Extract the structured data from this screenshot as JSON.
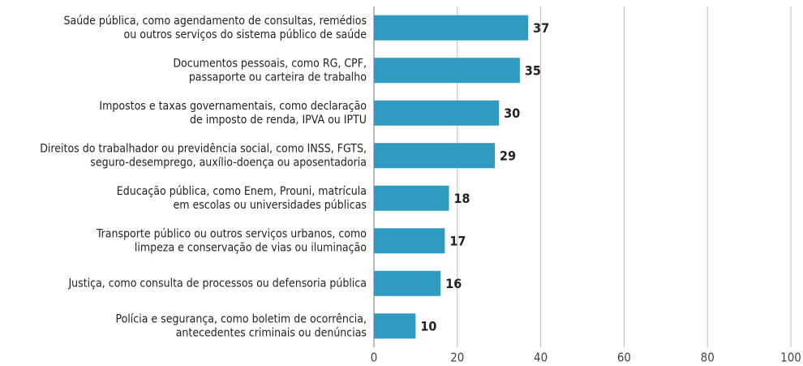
{
  "chart_data": {
    "type": "barh",
    "categories": [
      [
        "Saúde pública, como agendamento de consultas, remédios",
        "ou outros serviços do sistema público de saúde"
      ],
      [
        "Documentos pessoais, como RG, CPF,",
        "passaporte ou carteira de trabalho"
      ],
      [
        "Impostos e taxas governamentais, como declaração",
        "de imposto de renda, IPVA ou IPTU"
      ],
      [
        "Direitos do trabalhador ou previdência social, como INSS, FGTS,",
        "seguro-desemprego, auxílio-doença ou aposentadoria"
      ],
      [
        "Educação pública, como Enem, Prouni, matrícula",
        "em escolas ou universidades públicas"
      ],
      [
        "Transporte público ou outros serviços urbanos, como",
        "limpeza e conservação de vias ou iluminação"
      ],
      [
        "Justiça, como consulta de processos ou defensoria pública"
      ],
      [
        "Polícia e segurança, como boletim de ocorrência,",
        "antecedentes criminais ou denúncias"
      ]
    ],
    "values": [
      37,
      35,
      30,
      29,
      18,
      17,
      16,
      10
    ],
    "color": "#2f9bc1",
    "xlim": [
      0,
      100
    ],
    "xticks": [
      0,
      20,
      40,
      60,
      80,
      100
    ],
    "grid": true
  }
}
